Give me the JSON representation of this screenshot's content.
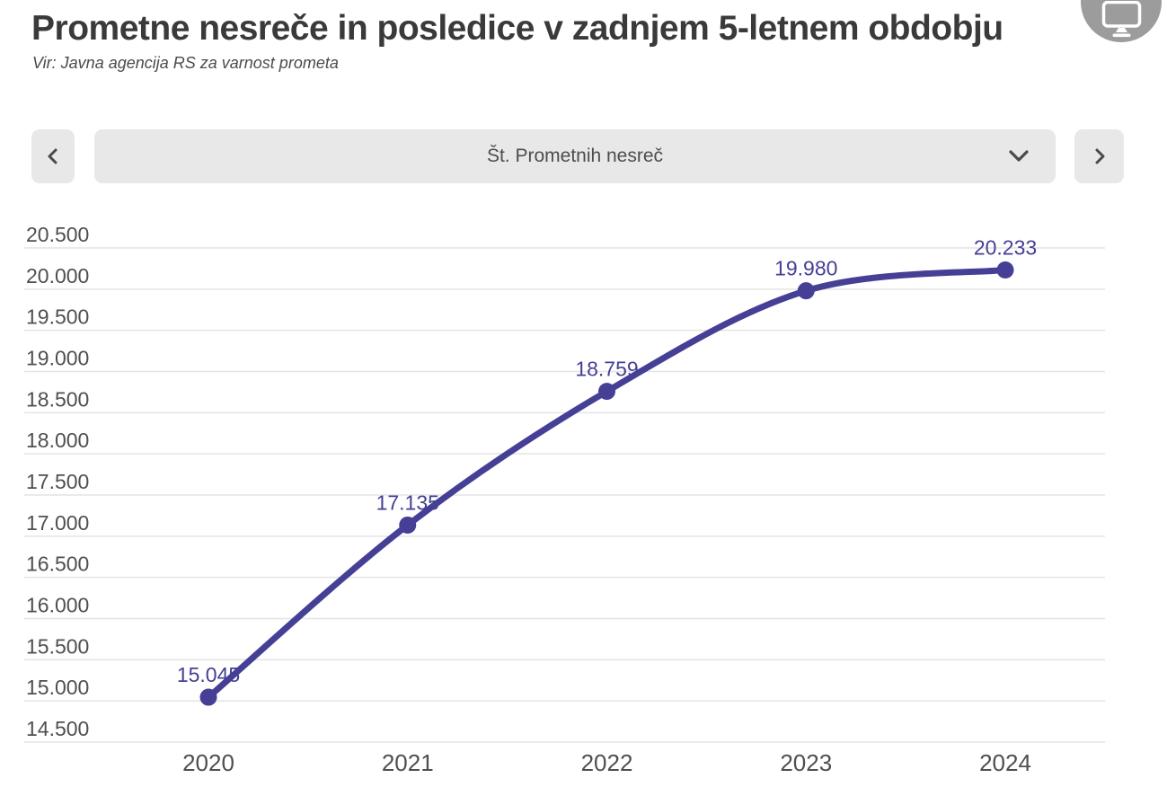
{
  "header": {
    "title": "Prometne nesreče in posledice v zadnjem 5-letnem obdobju",
    "source": "Vir: Javna agencija RS za varnost prometa",
    "presentation_button_icon": "monitor-icon"
  },
  "controls": {
    "prev_icon": "chevron-left-icon",
    "next_icon": "chevron-right-icon",
    "metric_selector": {
      "selected": "Št. Prometnih nesreč",
      "dropdown_icon": "chevron-down-icon"
    }
  },
  "colors": {
    "accent": "#453F96",
    "control_bg": "#E8E8E8",
    "grid_line": "#E4E4E4",
    "axis_text": "#4F4F4F",
    "title_text": "#3A3A3A",
    "icon_circle_bg": "#9C9C9C"
  },
  "chart_data": {
    "type": "line",
    "title": "Št. Prometnih nesreč",
    "x": [
      "2020",
      "2021",
      "2022",
      "2023",
      "2024"
    ],
    "values": [
      15045,
      17135,
      18759,
      19980,
      20233
    ],
    "point_labels": [
      "15.045",
      "17.135",
      "18.759",
      "19.980",
      "20.233"
    ],
    "ylim": [
      14500,
      20500
    ],
    "ytick_step": 500,
    "ytick_labels": [
      "20.500",
      "20.000",
      "19.500",
      "19.000",
      "18.500",
      "18.000",
      "17.500",
      "17.000",
      "16.500",
      "16.000",
      "15.500",
      "15.000",
      "14.500"
    ],
    "grid": true,
    "legend": "none",
    "curve": "smooth",
    "line_color": "#453F96"
  }
}
